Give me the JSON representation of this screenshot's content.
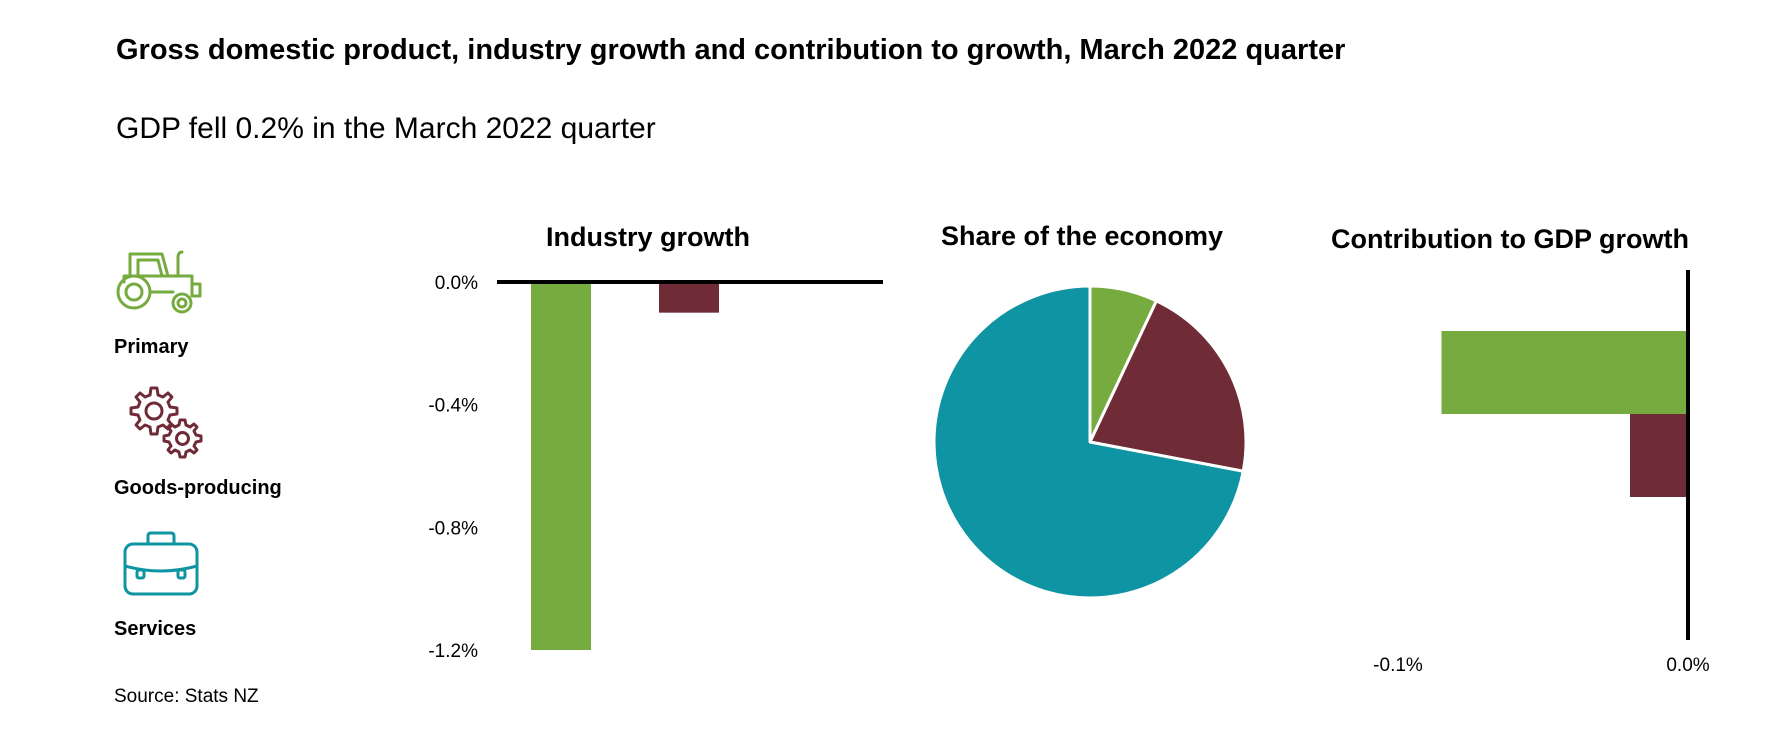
{
  "title": "Gross domestic product, industry growth and contribution to growth, March 2022 quarter",
  "subtitle": "GDP fell 0.2% in the March 2022 quarter",
  "source": "Source: Stats NZ",
  "legend": [
    {
      "label": "Primary",
      "icon": "tractor-icon",
      "color": "#76ab40"
    },
    {
      "label": "Goods-producing",
      "icon": "gears-icon",
      "color": "#6f2c37"
    },
    {
      "label": "Services",
      "icon": "briefcase-icon",
      "color": "#0e94a2"
    }
  ],
  "chart_data": [
    {
      "type": "bar",
      "title": "Industry growth",
      "categories": [
        "Primary",
        "Goods-producing"
      ],
      "values": [
        -1.2,
        -0.1
      ],
      "colors": [
        "#76ab40",
        "#6f2c37"
      ],
      "ylim": [
        -1.2,
        0
      ],
      "yticks": [
        0,
        -0.4,
        -0.8,
        -1.2
      ],
      "ytick_labels": [
        "0.0%",
        "-0.4%",
        "-0.8%",
        "-1.2%"
      ]
    },
    {
      "type": "pie",
      "title": "Share of the economy",
      "categories": [
        "Primary",
        "Goods-producing",
        "Services"
      ],
      "values": [
        7,
        21,
        72
      ],
      "colors": [
        "#76ab40",
        "#6f2c37",
        "#0e94a2"
      ]
    },
    {
      "type": "bar",
      "orientation": "horizontal",
      "title": "Contribution to GDP growth",
      "categories": [
        "Primary",
        "Goods-producing"
      ],
      "values": [
        -0.085,
        -0.02
      ],
      "colors": [
        "#76ab40",
        "#6f2c37"
      ],
      "xlim": [
        -0.1,
        0
      ],
      "xticks": [
        -0.1,
        0
      ],
      "xtick_labels": [
        "-0.1%",
        "0.0%"
      ]
    }
  ]
}
